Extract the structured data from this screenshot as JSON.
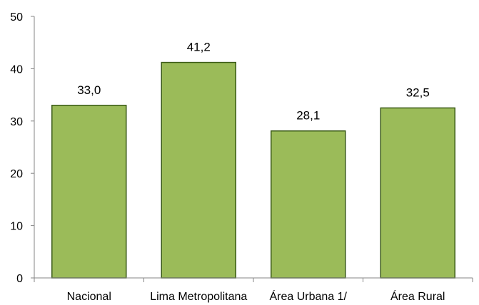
{
  "chart_data": {
    "type": "bar",
    "title": "",
    "xlabel": "",
    "ylabel": "",
    "categories": [
      "Nacional",
      "Lima Metropolitana",
      "Área Urbana 1/",
      "Área Rural"
    ],
    "values": [
      33.0,
      41.2,
      28.1,
      32.5
    ],
    "data_labels": [
      "33,0",
      "41,2",
      "28,1",
      "32,5"
    ],
    "yticks": [
      0,
      10,
      20,
      30,
      40,
      50
    ],
    "ylim": [
      0,
      50
    ],
    "grid": false,
    "legend": "none",
    "colors": {
      "bar_fill": "#9bbb59",
      "bar_stroke": "#3a5a16",
      "axis": "#868686"
    }
  }
}
